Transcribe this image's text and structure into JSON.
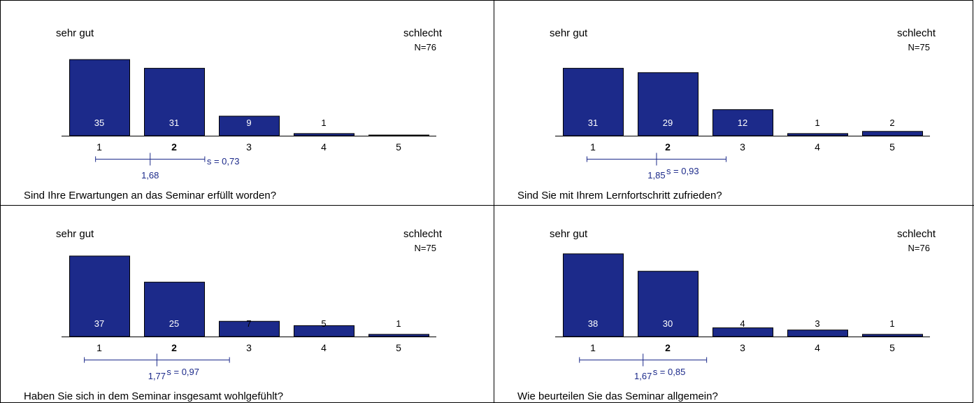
{
  "colors": {
    "bar": "#1c2a8a",
    "bar_outline": "#000000",
    "stats": "#1c2a8a",
    "text": "#000000",
    "grid": "#000000"
  },
  "chart_data": [
    {
      "type": "bar",
      "question": "Sind Ihre Erwartungen an das Seminar erfüllt worden?",
      "left_label": "sehr gut",
      "right_label": "schlecht",
      "n_label": "N=76",
      "categories": [
        "1",
        "2",
        "3",
        "4",
        "5"
      ],
      "bold_category": "2",
      "values": [
        35,
        31,
        9,
        1,
        0
      ],
      "value_labels": [
        "35",
        "31",
        "9",
        "1",
        ""
      ],
      "mean": 1.68,
      "mean_label": "1,68",
      "sd": 0.73,
      "sd_label": "s = 0,73",
      "scale": [
        1,
        5
      ]
    },
    {
      "type": "bar",
      "question": "Sind Sie mit Ihrem Lernfortschritt zufrieden?",
      "left_label": "sehr gut",
      "right_label": "schlecht",
      "n_label": "N=75",
      "categories": [
        "1",
        "2",
        "3",
        "4",
        "5"
      ],
      "bold_category": "2",
      "values": [
        31,
        29,
        12,
        1,
        2
      ],
      "value_labels": [
        "31",
        "29",
        "12",
        "1",
        "2"
      ],
      "mean": 1.85,
      "mean_label": "1,85",
      "sd": 0.93,
      "sd_label": "s = 0,93",
      "scale": [
        1,
        5
      ]
    },
    {
      "type": "bar",
      "question": "Haben Sie sich in dem Seminar insgesamt wohlgefühlt?",
      "left_label": "sehr gut",
      "right_label": "schlecht",
      "n_label": "N=75",
      "categories": [
        "1",
        "2",
        "3",
        "4",
        "5"
      ],
      "bold_category": "2",
      "values": [
        37,
        25,
        7,
        5,
        1
      ],
      "value_labels": [
        "37",
        "25",
        "7",
        "5",
        "1"
      ],
      "mean": 1.77,
      "mean_label": "1,77",
      "sd": 0.97,
      "sd_label": "s = 0,97",
      "scale": [
        1,
        5
      ]
    },
    {
      "type": "bar",
      "question": "Wie beurteilen Sie das Seminar allgemein?",
      "left_label": "sehr gut",
      "right_label": "schlecht",
      "n_label": "N=76",
      "categories": [
        "1",
        "2",
        "3",
        "4",
        "5"
      ],
      "bold_category": "2",
      "values": [
        38,
        30,
        4,
        3,
        1
      ],
      "value_labels": [
        "38",
        "30",
        "4",
        "3",
        "1"
      ],
      "mean": 1.67,
      "mean_label": "1,67",
      "sd": 0.85,
      "sd_label": "s = 0,85",
      "scale": [
        1,
        5
      ]
    }
  ]
}
